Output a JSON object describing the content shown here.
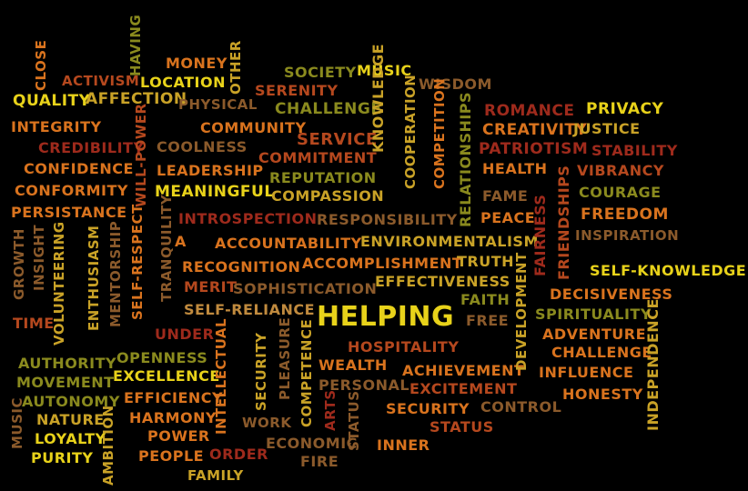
{
  "palette": {
    "yellow": "#e8d21a",
    "gold": "#c9a227",
    "orange": "#d9731e",
    "rust": "#b5481e",
    "red": "#9e2a1c",
    "olive": "#8a8a1e",
    "brown": "#8b5a2b",
    "tan": "#c08a3e"
  },
  "words": [
    "CLOSE",
    "ACTIVISM",
    "HAVING",
    "MONEY",
    "OTHER",
    "QUALITY",
    "AFFECTION",
    "LOCATION",
    "PHYSICAL",
    "SOCIETY",
    "MUSIC",
    "WISDOM",
    "SERENITY",
    "CHALLENGE",
    "ROMANCE",
    "PRIVACY",
    "INTEGRITY",
    "COMMUNITY",
    "CREATIVITY",
    "JUSTICE",
    "CREDIBILITY",
    "COOLNESS",
    "SERVICE",
    "PATRIOTISM",
    "STABILITY",
    "CONFIDENCE",
    "COMMITMENT",
    "HEALTH",
    "VIBRANCY",
    "LEADERSHIP",
    "REPUTATION",
    "CONFORMITY",
    "MEANINGFUL",
    "COMPASSION",
    "FAME",
    "COURAGE",
    "PERSISTANCE",
    "INTROSPECTION",
    "RESPONSIBILITY",
    "PEACE",
    "FREEDOM",
    "INSPIRATION",
    "ACCOUNTABILITY",
    "ENVIRONMENTALISM",
    "RECOGNITION",
    "ACCOMPLISHMENT",
    "TRUTH",
    "SELF-KNOWLEDGE",
    "MERIT",
    "SOPHISTICATION",
    "EFFECTIVENESS",
    "DECISIVENESS",
    "FAITH",
    "SELF-RELIANCE",
    "HELPING",
    "FREE",
    "SPIRITUALITY",
    "TIME",
    "ADVENTURE",
    "UNDER",
    "HOSPITALITY",
    "CHALLENGE",
    "AUTHORITY",
    "OPENNESS",
    "WEALTH",
    "ACHIEVEMENT",
    "INFLUENCE",
    "MOVEMENT",
    "EXCELLENCE",
    "PERSONAL",
    "EXCITEMENT",
    "AUTONOMY",
    "EFFICIENCY",
    "SECURITY",
    "CONTROL",
    "HONESTY",
    "NATURE",
    "HARMONY",
    "WORK",
    "STATUS",
    "LOYALTY",
    "POWER",
    "ECONOMIC",
    "INNER",
    "PURITY",
    "PEOPLE",
    "ORDER",
    "FIRE",
    "FAMILY",
    "KNOWLEDGE",
    "COOPERATION",
    "COMPETITION",
    "RELATIONSHIPS",
    "FRIENDSHIPS",
    "FAIRNESS",
    "DEVELOPMENT",
    "INDEPENDENCE",
    "WILL-POWER",
    "TRANQUILITY",
    "GROWTH",
    "INSIGHT",
    "VOLUNTEERING",
    "ENTHUSIASM",
    "MENTORSHIP",
    "SELF-RESPECT",
    "INTELLECTUAL",
    "SECURITY",
    "PLEASURE",
    "COMPETENCE",
    "ARTS",
    "STATUS",
    "MUSIC",
    "AMBITION",
    "A"
  ]
}
